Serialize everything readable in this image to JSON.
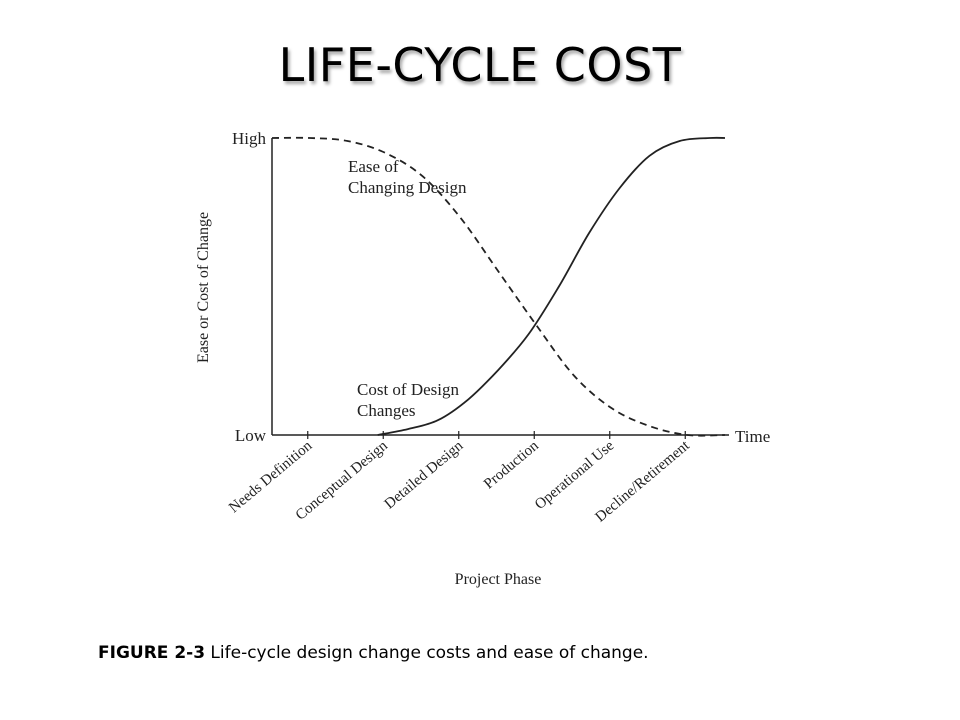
{
  "slide": {
    "title": "LIFE-CYCLE COST"
  },
  "caption": {
    "figure_label": "FIGURE 2-3",
    "text": " Life-cycle design change costs and ease of change."
  },
  "chart_data": {
    "type": "line",
    "ylabel": "Ease or Cost of Change",
    "xlabel": "Project Phase",
    "y_ticks": [
      "High",
      "Low"
    ],
    "x_end_label": "Time",
    "categories": [
      "Needs Definition",
      "Conceptual Design",
      "Detailed Design",
      "Production",
      "Operational Use",
      "Decline/Retirement"
    ],
    "ylim": [
      0,
      1
    ],
    "series": [
      {
        "name": "Ease of Changing Design",
        "label_lines": [
          "Ease of",
          "Changing Design"
        ],
        "style": "dashed",
        "x": [
          0,
          0.5,
          1,
          1.5,
          2,
          2.5,
          3,
          3.5,
          4,
          4.5,
          5,
          5.5,
          6
        ],
        "y": [
          1.0,
          1.0,
          0.99,
          0.95,
          0.87,
          0.73,
          0.55,
          0.37,
          0.2,
          0.09,
          0.03,
          0.0,
          0.0
        ]
      },
      {
        "name": "Cost of Design Changes",
        "label_lines": [
          "Cost of Design",
          "Changes"
        ],
        "style": "solid",
        "x": [
          1.4,
          1.8,
          2.2,
          2.6,
          3.0,
          3.4,
          3.8,
          4.2,
          4.6,
          5.0,
          5.4,
          5.8,
          6.0
        ],
        "y": [
          0.0,
          0.02,
          0.05,
          0.12,
          0.22,
          0.34,
          0.5,
          0.68,
          0.83,
          0.94,
          0.99,
          1.0,
          1.0
        ]
      }
    ],
    "colors": {
      "line": "#222222",
      "axis": "#222222"
    }
  }
}
